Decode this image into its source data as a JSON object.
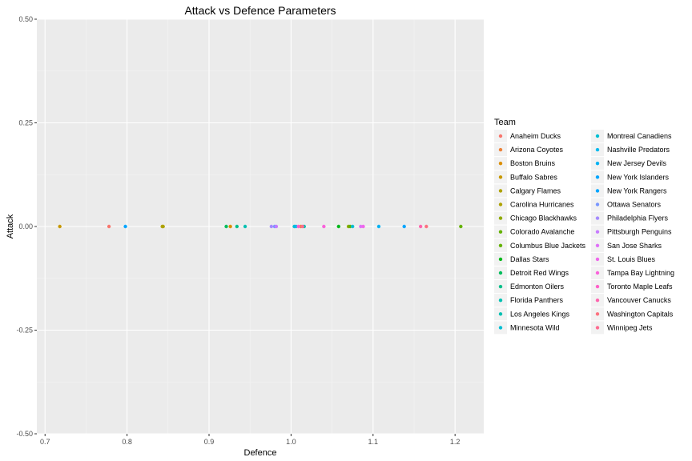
{
  "chart_data": {
    "type": "scatter",
    "title": "Attack vs Defence Parameters",
    "xlabel": "Defence",
    "ylabel": "Attack",
    "xlim": [
      0.69,
      1.235
    ],
    "ylim": [
      -0.5,
      0.5
    ],
    "x_ticks": [
      0.7,
      0.8,
      0.9,
      1.0,
      1.1,
      1.2
    ],
    "x_tick_labels": [
      "0.7",
      "0.8",
      "0.9",
      "1.0",
      "1.1",
      "1.2"
    ],
    "y_ticks": [
      -0.5,
      -0.25,
      0,
      0.25,
      0.5
    ],
    "y_tick_labels": [
      "-0.50",
      "-0.25",
      "0.00",
      "0.25",
      "0.50"
    ],
    "grid": true,
    "legend_title": "Team",
    "legend_position": "right",
    "series": [
      {
        "name": "Anaheim Ducks",
        "color": "#F8766D",
        "x": 0.778,
        "y": 0
      },
      {
        "name": "Arizona Coyotes",
        "color": "#EC8239",
        "x": 1.012,
        "y": 0
      },
      {
        "name": "Boston Bruins",
        "color": "#DB8E00",
        "x": 0.926,
        "y": 0
      },
      {
        "name": "Buffalo Sabres",
        "color": "#C79800",
        "x": 0.718,
        "y": 0
      },
      {
        "name": "Calgary Flames",
        "color": "#AEA200",
        "x": 0.844,
        "y": 0
      },
      {
        "name": "Carolina Hurricanes",
        "color": "#AEA200",
        "x": 0.843,
        "y": 0
      },
      {
        "name": "Chicago Blackhawks",
        "color": "#8FAA00",
        "x": 1.07,
        "y": 0
      },
      {
        "name": "Colorado Avalanche",
        "color": "#64B200",
        "x": 1.072,
        "y": 0
      },
      {
        "name": "Columbus Blue Jackets",
        "color": "#64B200",
        "x": 1.207,
        "y": 0
      },
      {
        "name": "Dallas Stars",
        "color": "#00B81B",
        "x": 1.058,
        "y": 0
      },
      {
        "name": "Detroit Red Wings",
        "color": "#00BD5C",
        "x": 0.921,
        "y": 0
      },
      {
        "name": "Edmonton Oilers",
        "color": "#00C08B",
        "x": 0.934,
        "y": 0
      },
      {
        "name": "Florida Panthers",
        "color": "#00C1B2",
        "x": 0.944,
        "y": 0
      },
      {
        "name": "Los Angeles Kings",
        "color": "#00C1B2",
        "x": 1.016,
        "y": 0
      },
      {
        "name": "Minnesota Wild",
        "color": "#00BFD3",
        "x": 1.004,
        "y": 0
      },
      {
        "name": "Montreal Canadiens",
        "color": "#00BFD3",
        "x": 1.075,
        "y": 0
      },
      {
        "name": "Nashville Predators",
        "color": "#00BAEE",
        "x": 1.006,
        "y": 0
      },
      {
        "name": "New Jersey Devils",
        "color": "#00B2F3",
        "x": 1.107,
        "y": 0
      },
      {
        "name": "New York Islanders",
        "color": "#00A5FF",
        "x": 0.798,
        "y": 0
      },
      {
        "name": "New York Rangers",
        "color": "#00A5FF",
        "x": 1.138,
        "y": 0
      },
      {
        "name": "Ottawa Senators",
        "color": "#7997FF",
        "x": 0.98,
        "y": 0
      },
      {
        "name": "Philadelphia Flyers",
        "color": "#A58AFF",
        "x": 0.976,
        "y": 0
      },
      {
        "name": "Pittsburgh Penguins",
        "color": "#C77CFF",
        "x": 0.982,
        "y": 0
      },
      {
        "name": "San Jose Sharks",
        "color": "#DF70F8",
        "x": 1.085,
        "y": 0
      },
      {
        "name": "St. Louis Blues",
        "color": "#EF67EB",
        "x": 1.088,
        "y": 0
      },
      {
        "name": "Tampa Bay Lightning",
        "color": "#FA62DB",
        "x": 1.04,
        "y": 0
      },
      {
        "name": "Toronto Maple Leafs",
        "color": "#FF61C9",
        "x": 1.009,
        "y": 0
      },
      {
        "name": "Vancouver Canucks",
        "color": "#FF65AE",
        "x": 1.158,
        "y": 0
      },
      {
        "name": "Washington Capitals",
        "color": "#FC717F",
        "x": 1.165,
        "y": 0
      },
      {
        "name": "Winnipeg Jets",
        "color": "#FF6C91",
        "x": 1.014,
        "y": 0
      }
    ]
  }
}
